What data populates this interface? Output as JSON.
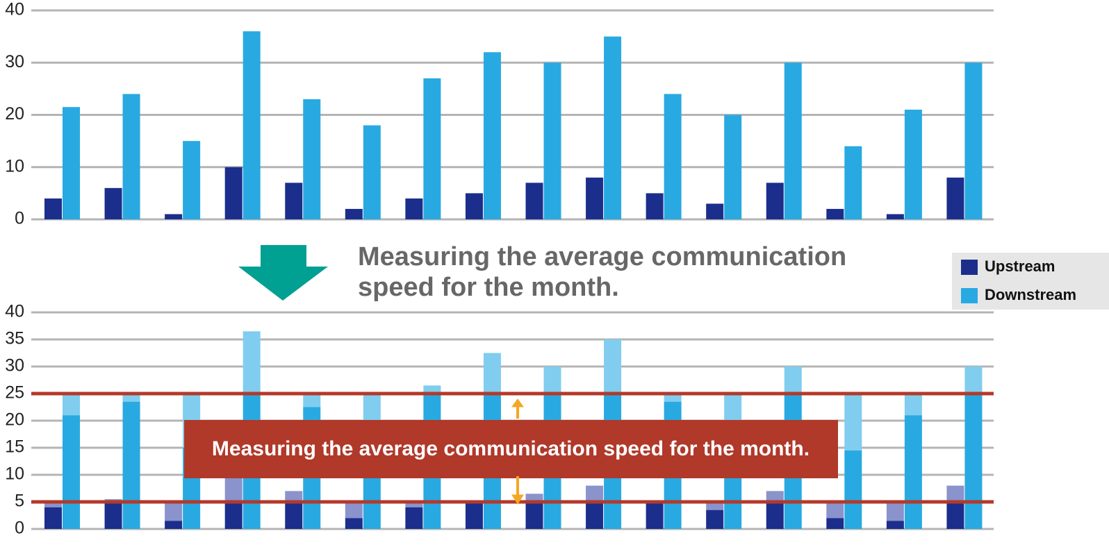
{
  "chart_data": [
    {
      "type": "bar",
      "categories": [
        null,
        null,
        null,
        null,
        null,
        null,
        null,
        null,
        null,
        null,
        null,
        null,
        null,
        null,
        null,
        null
      ],
      "series": [
        {
          "name": "Upstream",
          "color": "#1b2e8c",
          "values": [
            4,
            6,
            1,
            10,
            7,
            2,
            4,
            5,
            7,
            8,
            5,
            3,
            7,
            2,
            1,
            8
          ]
        },
        {
          "name": "Downstream",
          "color": "#29a9e1",
          "values": [
            21.5,
            24,
            15,
            36,
            23,
            18,
            27,
            32,
            30,
            35,
            24,
            20,
            30,
            14,
            21,
            30
          ]
        }
      ],
      "ylim": [
        0,
        40
      ],
      "yticks": [
        0,
        10,
        20,
        30,
        40
      ],
      "grid": true
    },
    {
      "type": "bar",
      "title": "Measuring the average communication speed for the month.",
      "annotation": "Measuring the average communication speed for the month.",
      "categories": [
        null,
        null,
        null,
        null,
        null,
        null,
        null,
        null,
        null,
        null,
        null,
        null,
        null,
        null,
        null,
        null
      ],
      "series": [
        {
          "name": "Upstream",
          "color": "#1b2e8c",
          "faded_color": "#8a93cc",
          "threshold": 5,
          "values": [
            4,
            5.5,
            1.5,
            10,
            7,
            2,
            4,
            5,
            6.5,
            8,
            5,
            3.5,
            7,
            2,
            1.5,
            8
          ]
        },
        {
          "name": "Downstream",
          "color": "#29a9e1",
          "faded_color": "#80cdef",
          "threshold": 25,
          "values": [
            21,
            23.5,
            15,
            36.5,
            22.5,
            18,
            26.5,
            32.5,
            30,
            35,
            23.5,
            20,
            30,
            14.5,
            21,
            30
          ]
        }
      ],
      "threshold_color": "#b3392a",
      "ylim": [
        0,
        40
      ],
      "yticks": [
        0,
        5,
        10,
        15,
        20,
        25,
        30,
        35,
        40
      ],
      "grid": true,
      "legend": "right"
    }
  ]
}
